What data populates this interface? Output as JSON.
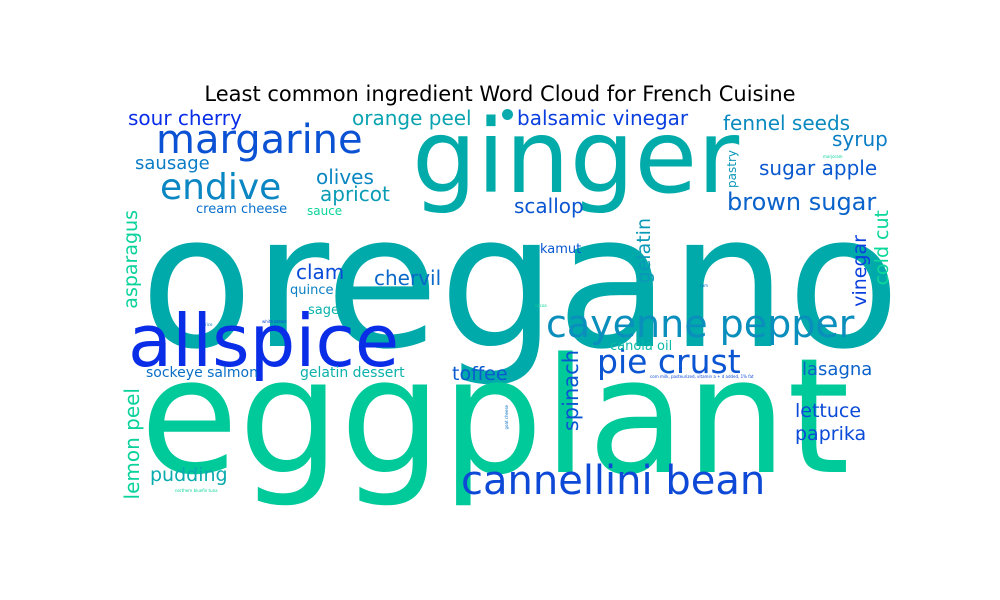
{
  "chart_data": {
    "type": "wordcloud",
    "title": "Least common ingredient Word Cloud for French Cuisine",
    "colormap": "winter",
    "words": [
      {
        "text": "oregano",
        "color": "#00a9aa"
      },
      {
        "text": "eggplant",
        "color": "#00c99a"
      },
      {
        "text": "ginger",
        "color": "#00aba9"
      },
      {
        "text": "allspice",
        "color": "#0a2de8"
      },
      {
        "text": "cannellini bean",
        "color": "#0d49d6"
      },
      {
        "text": "cayenne pepper",
        "color": "#0a8fbd"
      },
      {
        "text": "margarine",
        "color": "#0a51d4"
      },
      {
        "text": "endive",
        "color": "#0a86c2"
      },
      {
        "text": "pie crust",
        "color": "#0b55d2"
      },
      {
        "text": "brown sugar",
        "color": "#0a62cb"
      },
      {
        "text": "sour cherry",
        "color": "#0a2de8"
      },
      {
        "text": "orange peel",
        "color": "#0aa4b1"
      },
      {
        "text": "balsamic vinegar",
        "color": "#0a3fdf"
      },
      {
        "text": "fennel seeds",
        "color": "#0a8abf"
      },
      {
        "text": "syrup",
        "color": "#0a7ec5"
      },
      {
        "text": "sugar apple",
        "color": "#0a58d0"
      },
      {
        "text": "sausage",
        "color": "#0a7dc6"
      },
      {
        "text": "olives",
        "color": "#0a86c2"
      },
      {
        "text": "apricot",
        "color": "#0a9cb5"
      },
      {
        "text": "scallop",
        "color": "#0a56d1"
      },
      {
        "text": "cream cheese",
        "color": "#0a6fcc"
      },
      {
        "text": "sauce",
        "color": "#0ad59a"
      },
      {
        "text": "asparagus",
        "color": "#0ad29b"
      },
      {
        "text": "cold cut",
        "color": "#0ad79a"
      },
      {
        "text": "vinegar",
        "color": "#0a3fdf"
      },
      {
        "text": "gelatin",
        "color": "#0a98b8"
      },
      {
        "text": "pastry",
        "color": "#0a97b8"
      },
      {
        "text": "clam",
        "color": "#0a4ad9"
      },
      {
        "text": "chervil",
        "color": "#0a68c9"
      },
      {
        "text": "kamut",
        "color": "#0a57d0"
      },
      {
        "text": "quince",
        "color": "#0a7fc5"
      },
      {
        "text": "sage",
        "color": "#0ab2aa"
      },
      {
        "text": "canola oil",
        "color": "#0ab9a6"
      },
      {
        "text": "lasagna",
        "color": "#0a62cb"
      },
      {
        "text": "sockeye salmon",
        "color": "#0a6ec6"
      },
      {
        "text": "gelatin dessert",
        "color": "#0ab1ab"
      },
      {
        "text": "toffee",
        "color": "#0a5bcf"
      },
      {
        "text": "spinach",
        "color": "#0a55d2"
      },
      {
        "text": "lettuce",
        "color": "#0a4ad8"
      },
      {
        "text": "paprika",
        "color": "#0a4ad8"
      },
      {
        "text": "lemon peel",
        "color": "#0ad29b"
      },
      {
        "text": "pudding",
        "color": "#0aabae"
      },
      {
        "text": "marjoram",
        "color": "#0ad59a"
      },
      {
        "text": "rice",
        "color": "#0a6ec6"
      },
      {
        "text": "white bread",
        "color": "#0a4ad8"
      },
      {
        "text": "rum",
        "color": "#0a6ec6"
      },
      {
        "text": "cocoa",
        "color": "#0ad59a"
      },
      {
        "text": "corn milk, pasteurized, vitamin a + d added, 1% fat",
        "color": "#0a4ad8"
      },
      {
        "text": "goat cheese",
        "color": "#0a6ec6"
      },
      {
        "text": "northern bluefin tuna",
        "color": "#0ad59a"
      }
    ]
  }
}
